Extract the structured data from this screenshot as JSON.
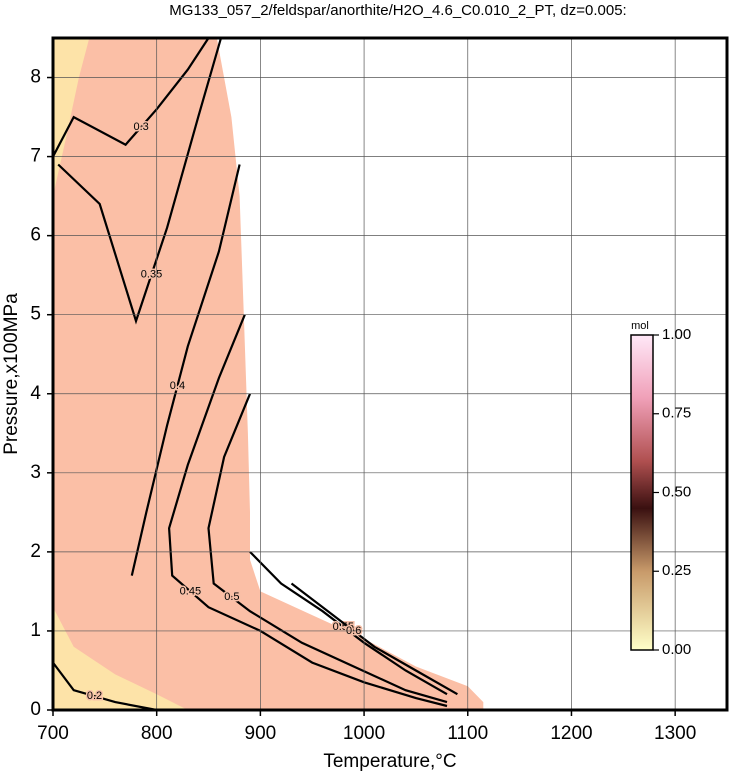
{
  "chart_data": {
    "type": "contour",
    "title": "MG133_057_2/feldspar/anorthite/H2O_4.6_C0.010_2_PT, dz=0.005:",
    "x_label": "Temperature,°C",
    "y_label": "Pressure,x100MPa",
    "xlim": [
      700,
      1350
    ],
    "ylim": [
      0,
      8.5
    ],
    "xticks": [
      700,
      800,
      900,
      1000,
      1100,
      1200,
      1300
    ],
    "yticks": [
      0,
      1,
      2,
      3,
      4,
      5,
      6,
      7,
      8
    ],
    "grid": true,
    "regions": [
      {
        "color": "#fbbfa6",
        "x": [
          700,
          700,
          858,
          872,
          880,
          884,
          888,
          890,
          890,
          900,
          950,
          1000,
          1050,
          1100,
          1115,
          1115
        ],
        "y": [
          0,
          8.5,
          8.5,
          7.5,
          6.5,
          5.0,
          3.5,
          2.5,
          1.9,
          1.5,
          1.2,
          0.9,
          0.55,
          0.3,
          0.1,
          0
        ]
      },
      {
        "color": "#fde3a8",
        "x": [
          700,
          700,
          720,
          760,
          800,
          830
        ],
        "y": [
          0,
          1.3,
          0.8,
          0.45,
          0.2,
          0
        ]
      },
      {
        "color": "#fde3a8",
        "x": [
          700,
          712,
          725,
          735,
          700
        ],
        "y": [
          6.5,
          7.2,
          8.0,
          8.5,
          8.5
        ]
      }
    ],
    "contours": [
      {
        "level": 0.2,
        "x": [
          700,
          720,
          760,
          800
        ],
        "y": [
          0.6,
          0.25,
          0.1,
          0.0
        ]
      },
      {
        "level": 0.3,
        "x": [
          700,
          720,
          770,
          800,
          830,
          850
        ],
        "y": [
          7.0,
          7.5,
          7.15,
          7.6,
          8.1,
          8.5
        ]
      },
      {
        "level": 0.35,
        "x": [
          705,
          745,
          780,
          810,
          840,
          862
        ],
        "y": [
          6.9,
          6.4,
          4.92,
          6.1,
          7.5,
          8.5
        ]
      },
      {
        "level": 0.4,
        "x": [
          776,
          790,
          810,
          830,
          860,
          880
        ],
        "y": [
          1.7,
          2.5,
          3.6,
          4.6,
          5.8,
          6.9
        ]
      },
      {
        "level": 0.45,
        "x": [
          885,
          860,
          830,
          812,
          815,
          850,
          900,
          950,
          1000,
          1050,
          1080
        ],
        "y": [
          5.0,
          4.2,
          3.1,
          2.3,
          1.7,
          1.3,
          1.0,
          0.6,
          0.35,
          0.15,
          0.05
        ]
      },
      {
        "level": 0.5,
        "x": [
          890,
          865,
          850,
          855,
          890,
          940,
          990,
          1040,
          1080
        ],
        "y": [
          4.0,
          3.2,
          2.3,
          1.6,
          1.25,
          0.85,
          0.55,
          0.25,
          0.1
        ]
      },
      {
        "level": 0.55,
        "x": [
          890,
          920,
          960,
          1000,
          1040,
          1080
        ],
        "y": [
          2.0,
          1.6,
          1.25,
          0.85,
          0.5,
          0.2
        ]
      },
      {
        "level": 0.6,
        "x": [
          930,
          970,
          1010,
          1050,
          1090
        ],
        "y": [
          1.6,
          1.2,
          0.8,
          0.5,
          0.2
        ]
      }
    ],
    "colorbar": {
      "label": "mol",
      "lim": [
        0,
        1
      ],
      "ticks": [
        {
          "value": 0,
          "label": "0.00"
        },
        {
          "value": 0.25,
          "label": "0.25"
        },
        {
          "value": 0.5,
          "label": "0.50"
        },
        {
          "value": 0.75,
          "label": "0.75"
        },
        {
          "value": 1,
          "label": "1.00"
        }
      ]
    }
  }
}
